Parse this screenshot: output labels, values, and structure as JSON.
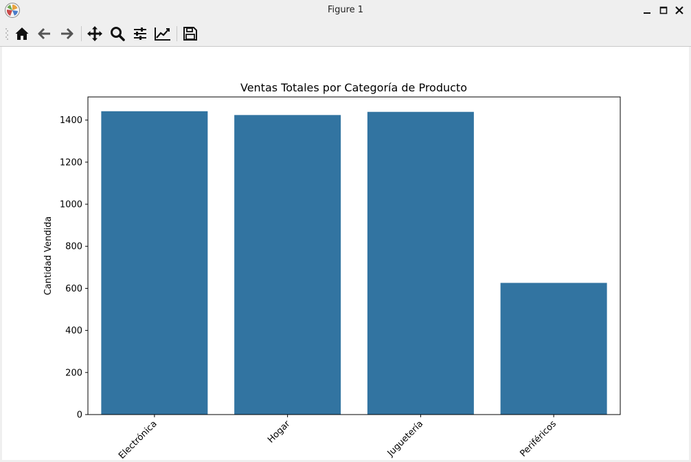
{
  "window": {
    "title": "Figure 1"
  },
  "toolbar": {
    "buttons": [
      {
        "name": "home-button",
        "icon": "home-icon"
      },
      {
        "name": "back-button",
        "icon": "arrow-left-icon"
      },
      {
        "name": "forward-button",
        "icon": "arrow-right-icon"
      },
      {
        "name": "pan-button",
        "icon": "move-icon"
      },
      {
        "name": "zoom-button",
        "icon": "magnifier-icon"
      },
      {
        "name": "configure-subplots-button",
        "icon": "sliders-icon"
      },
      {
        "name": "edit-axes-button",
        "icon": "line-chart-icon"
      },
      {
        "name": "save-button",
        "icon": "floppy-disk-icon"
      }
    ]
  },
  "chart_data": {
    "type": "bar",
    "title": "Ventas Totales por Categoría de Producto",
    "xlabel": "",
    "ylabel": "Cantidad Vendida",
    "categories": [
      "Electrónica",
      "Hogar",
      "Juguetería",
      "Periféricos"
    ],
    "values": [
      1442,
      1424,
      1439,
      626
    ],
    "ylim": [
      0,
      1510
    ],
    "yticks": [
      0,
      200,
      400,
      600,
      800,
      1000,
      1200,
      1400
    ],
    "bar_color": "#3274a1",
    "xtick_rotation": -45,
    "grid": false,
    "legend": "none"
  }
}
